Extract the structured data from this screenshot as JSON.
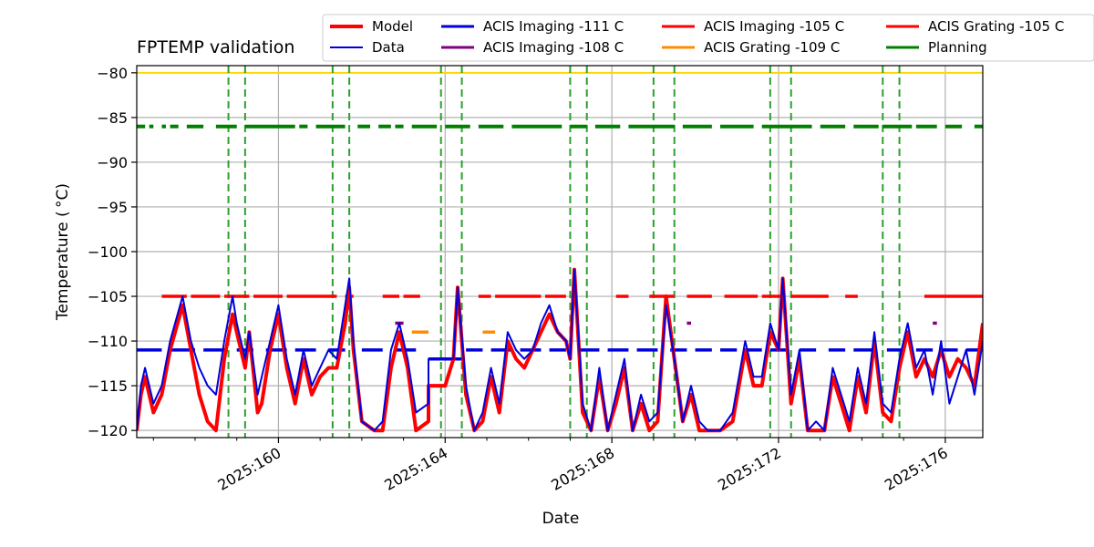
{
  "chart_data": {
    "type": "line",
    "title": "FPTEMP validation",
    "xlabel": "Date",
    "ylabel": "Temperature ($^\\circ$C)",
    "ylabel_display": "Temperature ( °C)",
    "xlim": [
      156.6,
      176.9
    ],
    "ylim": [
      -120.8,
      -79.2
    ],
    "grid": true,
    "legend_placement": "top",
    "x_ticks": [
      {
        "value": 160,
        "label": "2025:160"
      },
      {
        "value": 164,
        "label": "2025:164"
      },
      {
        "value": 168,
        "label": "2025:168"
      },
      {
        "value": 172,
        "label": "2025:172"
      },
      {
        "value": 176,
        "label": "2025:176"
      }
    ],
    "y_ticks": [
      -80,
      -85,
      -90,
      -95,
      -100,
      -105,
      -110,
      -115,
      -120
    ],
    "y_tick_labels": [
      "−80",
      "−85",
      "−90",
      "−95",
      "−100",
      "−105",
      "−110",
      "−115",
      "−120"
    ],
    "limit_line": {
      "value": -80,
      "color": "#ffd700"
    },
    "vertical_lines": {
      "color": "#2ca02c",
      "x": [
        158.8,
        159.2,
        161.3,
        161.7,
        163.9,
        164.4,
        167.0,
        167.4,
        169.0,
        169.5,
        171.8,
        172.3,
        174.5,
        174.9
      ]
    },
    "legend": [
      {
        "label": "Model",
        "color": "#ff0000",
        "width": 4
      },
      {
        "label": "Data",
        "color": "#0000dd",
        "width": 2
      },
      {
        "label": "ACIS Imaging -111 C",
        "color": "#0000dd",
        "width": 3
      },
      {
        "label": "ACIS Imaging -108 C",
        "color": "#800080",
        "width": 3
      },
      {
        "label": "ACIS Imaging -105 C",
        "color": "#ff0000",
        "width": 3
      },
      {
        "label": "ACIS Grating -109 C",
        "color": "#ff8c00",
        "width": 3
      },
      {
        "label": "ACIS Grating -105 C",
        "color": "#ff0000",
        "width": 3
      },
      {
        "label": "Planning",
        "color": "#008000",
        "width": 3
      }
    ],
    "series": [
      {
        "name": "Data",
        "color": "#0000dd",
        "width": 2,
        "x": [
          156.6,
          156.7,
          156.8,
          157.0,
          157.2,
          157.4,
          157.7,
          157.9,
          158.1,
          158.3,
          158.5,
          158.7,
          158.9,
          159.0,
          159.2,
          159.3,
          159.5,
          159.6,
          159.8,
          160.0,
          160.2,
          160.4,
          160.6,
          160.8,
          161.0,
          161.2,
          161.4,
          161.6,
          161.7,
          161.8,
          162.0,
          162.3,
          162.5,
          162.7,
          162.9,
          163.1,
          163.3,
          163.6,
          163.6,
          164.0,
          164.2,
          164.3,
          164.5,
          164.7,
          164.9,
          165.1,
          165.3,
          165.5,
          165.7,
          165.9,
          166.1,
          166.3,
          166.5,
          166.7,
          166.9,
          167.0,
          167.1,
          167.3,
          167.5,
          167.7,
          167.9,
          168.1,
          168.3,
          168.5,
          168.7,
          168.9,
          169.1,
          169.3,
          169.5,
          169.7,
          169.9,
          170.1,
          170.3,
          170.6,
          170.9,
          171.2,
          171.4,
          171.6,
          171.8,
          172.0,
          172.1,
          172.3,
          172.5,
          172.7,
          172.9,
          173.1,
          173.3,
          173.5,
          173.7,
          173.9,
          174.1,
          174.3,
          174.5,
          174.7,
          174.9,
          175.1,
          175.3,
          175.5,
          175.7,
          175.9,
          176.1,
          176.3,
          176.5,
          176.7,
          176.9
        ],
        "y": [
          -120,
          -115,
          -113,
          -117,
          -115,
          -110,
          -105,
          -110,
          -113,
          -115,
          -116,
          -110,
          -105,
          -108,
          -112,
          -109,
          -116,
          -114,
          -110,
          -106,
          -112,
          -116,
          -111,
          -115,
          -113,
          -111,
          -112,
          -106,
          -103,
          -110,
          -119,
          -120,
          -119,
          -111,
          -108,
          -112,
          -118,
          -117,
          -112,
          -112,
          -112,
          -104,
          -115,
          -120,
          -118,
          -113,
          -117,
          -109,
          -111,
          -112,
          -111,
          -108,
          -106,
          -109,
          -110,
          -112,
          -102,
          -117,
          -120,
          -113,
          -120,
          -116,
          -112,
          -120,
          -116,
          -119,
          -118,
          -106,
          -112,
          -119,
          -115,
          -119,
          -120,
          -120,
          -118,
          -110,
          -114,
          -114,
          -108,
          -111,
          -103,
          -116,
          -111,
          -120,
          -119,
          -120,
          -113,
          -116,
          -119,
          -113,
          -117,
          -109,
          -117,
          -118,
          -112,
          -108,
          -113,
          -111,
          -116,
          -110,
          -117,
          -114,
          -111,
          -116,
          -110
        ]
      },
      {
        "name": "Model",
        "color": "#ff0000",
        "width": 4,
        "x": [
          156.6,
          156.7,
          156.8,
          157.0,
          157.2,
          157.4,
          157.7,
          157.9,
          158.1,
          158.3,
          158.5,
          158.7,
          158.9,
          159.0,
          159.2,
          159.3,
          159.5,
          159.6,
          159.8,
          160.0,
          160.2,
          160.4,
          160.6,
          160.8,
          161.0,
          161.2,
          161.4,
          161.6,
          161.7,
          161.8,
          162.0,
          162.3,
          162.5,
          162.7,
          162.9,
          163.1,
          163.3,
          163.6,
          163.6,
          164.0,
          164.2,
          164.3,
          164.5,
          164.7,
          164.9,
          165.1,
          165.3,
          165.5,
          165.7,
          165.9,
          166.1,
          166.3,
          166.5,
          166.7,
          166.9,
          167.0,
          167.1,
          167.3,
          167.5,
          167.7,
          167.9,
          168.1,
          168.3,
          168.5,
          168.7,
          168.9,
          169.1,
          169.3,
          169.5,
          169.7,
          169.9,
          170.1,
          170.3,
          170.6,
          170.9,
          171.2,
          171.4,
          171.6,
          171.8,
          172.0,
          172.1,
          172.3,
          172.5,
          172.7,
          172.9,
          173.1,
          173.3,
          173.5,
          173.7,
          173.9,
          174.1,
          174.3,
          174.5,
          174.7,
          174.9,
          175.1,
          175.3,
          175.5,
          175.7,
          175.9,
          176.1,
          176.3,
          176.5,
          176.7,
          176.9
        ],
        "y": [
          -120,
          -116,
          -114,
          -118,
          -116,
          -111,
          -106,
          -111,
          -116,
          -119,
          -120,
          -112,
          -107,
          -109,
          -113,
          -109,
          -118,
          -117,
          -111,
          -107,
          -113,
          -117,
          -112,
          -116,
          -114,
          -113,
          -113,
          -108,
          -104,
          -111,
          -119,
          -120,
          -120,
          -113,
          -109,
          -113,
          -120,
          -119,
          -115,
          -115,
          -112,
          -104,
          -116,
          -120,
          -119,
          -114,
          -118,
          -110,
          -112,
          -113,
          -111,
          -109,
          -107,
          -109,
          -110,
          -112,
          -102,
          -118,
          -120,
          -114,
          -120,
          -117,
          -113,
          -120,
          -117,
          -120,
          -119,
          -105,
          -112,
          -119,
          -116,
          -120,
          -120,
          -120,
          -119,
          -111,
          -115,
          -115,
          -109,
          -111,
          -103,
          -117,
          -112,
          -120,
          -120,
          -120,
          -114,
          -117,
          -120,
          -114,
          -118,
          -110,
          -118,
          -119,
          -113,
          -109,
          -114,
          -112,
          -114,
          -111,
          -114,
          -112,
          -113,
          -115,
          -108
        ]
      }
    ],
    "limit_segments": [
      {
        "name": "ACIS Imaging -111 C",
        "color": "#0000dd",
        "width": 3,
        "value": -111,
        "ranges": [
          [
            156.6,
            157.2
          ],
          [
            157.4,
            158.0
          ],
          [
            158.2,
            158.7
          ],
          [
            159.0,
            159.4
          ],
          [
            159.7,
            160.2
          ],
          [
            160.4,
            160.9
          ],
          [
            161.2,
            161.6
          ],
          [
            162.0,
            162.5
          ],
          [
            162.8,
            163.3
          ],
          [
            164.5,
            164.9
          ],
          [
            165.1,
            165.6
          ],
          [
            165.8,
            166.3
          ],
          [
            166.5,
            166.9
          ],
          [
            167.2,
            167.7
          ],
          [
            167.9,
            168.4
          ],
          [
            168.6,
            169.1
          ],
          [
            169.4,
            169.8
          ],
          [
            170.0,
            170.4
          ],
          [
            170.6,
            171.0
          ],
          [
            171.2,
            171.6
          ],
          [
            171.8,
            172.2
          ],
          [
            172.5,
            172.9
          ],
          [
            173.2,
            173.6
          ],
          [
            173.8,
            174.3
          ],
          [
            174.6,
            175.0
          ],
          [
            175.3,
            175.7
          ],
          [
            175.9,
            176.3
          ],
          [
            176.5,
            176.9
          ]
        ]
      },
      {
        "name": "ACIS Imaging -105 C",
        "color": "#ff0000",
        "width": 3,
        "value": -105,
        "ranges": [
          [
            157.2,
            157.8
          ],
          [
            157.9,
            158.6
          ],
          [
            158.7,
            159.3
          ],
          [
            159.4,
            160.1
          ],
          [
            160.2,
            161.4
          ],
          [
            161.6,
            161.8
          ],
          [
            162.5,
            162.9
          ],
          [
            163.0,
            163.4
          ],
          [
            164.8,
            165.1
          ],
          [
            165.2,
            166.3
          ],
          [
            166.4,
            166.9
          ],
          [
            168.1,
            168.4
          ],
          [
            168.9,
            169.5
          ],
          [
            169.8,
            170.4
          ],
          [
            170.7,
            171.5
          ],
          [
            171.6,
            172.1
          ],
          [
            172.3,
            173.2
          ],
          [
            173.6,
            173.9
          ],
          [
            175.5,
            176.9
          ]
        ]
      },
      {
        "name": "ACIS Imaging -108 C",
        "color": "#800080",
        "width": 3,
        "value": -108,
        "ranges": [
          [
            162.8,
            163.0
          ],
          [
            169.8,
            169.9
          ],
          [
            175.7,
            175.8
          ]
        ]
      },
      {
        "name": "ACIS Grating -109 C",
        "color": "#ff8c00",
        "width": 3,
        "value": -109,
        "ranges": [
          [
            163.2,
            163.6
          ],
          [
            164.9,
            165.2
          ]
        ]
      },
      {
        "name": "Grating dashes -112 C",
        "color": "#0000dd",
        "width": 3,
        "value": -112,
        "ranges": [
          [
            163.6,
            164.4
          ]
        ]
      },
      {
        "name": "Planning",
        "color": "#008000",
        "width": 3,
        "value": -86,
        "ranges": [
          [
            156.6,
            156.8
          ],
          [
            156.9,
            157.0
          ],
          [
            157.2,
            157.3
          ],
          [
            157.4,
            157.6
          ],
          [
            157.8,
            158.2
          ],
          [
            158.5,
            159.0
          ],
          [
            159.2,
            160.4
          ],
          [
            160.5,
            160.7
          ],
          [
            160.9,
            161.6
          ],
          [
            161.9,
            162.2
          ],
          [
            162.4,
            162.7
          ],
          [
            162.8,
            163.0
          ],
          [
            163.2,
            163.8
          ],
          [
            164.0,
            164.6
          ],
          [
            164.8,
            165.4
          ],
          [
            165.6,
            166.8
          ],
          [
            167.0,
            167.4
          ],
          [
            167.6,
            168.2
          ],
          [
            168.4,
            169.5
          ],
          [
            169.7,
            170.4
          ],
          [
            170.6,
            171.4
          ],
          [
            171.6,
            172.8
          ],
          [
            173.0,
            173.6
          ],
          [
            173.8,
            174.4
          ],
          [
            174.5,
            175.2
          ],
          [
            175.3,
            175.8
          ],
          [
            176.0,
            176.4
          ],
          [
            176.7,
            176.9
          ]
        ]
      }
    ]
  }
}
